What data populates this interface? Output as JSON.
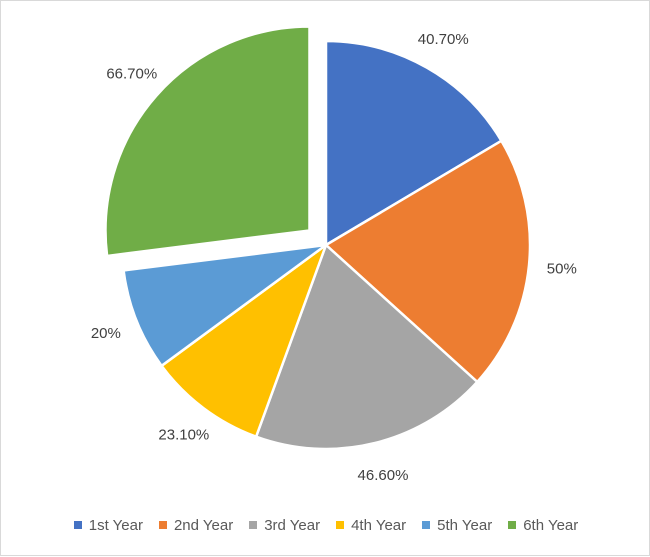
{
  "chart_data": {
    "type": "pie",
    "categories": [
      "1st Year",
      "2nd Year",
      "3rd Year",
      "4th Year",
      "5th Year",
      "6th Year"
    ],
    "values": [
      40.7,
      50,
      46.6,
      23.1,
      20,
      66.7
    ],
    "data_labels": [
      "40.70%",
      "50%",
      "46.60%",
      "23.10%",
      "20%",
      "66.70%"
    ],
    "colors": [
      "#4472c4",
      "#ed7d31",
      "#a5a5a5",
      "#ffc000",
      "#5b9bd5",
      "#70ad47"
    ],
    "exploded_slice": "6th Year",
    "title": "",
    "legend_position": "bottom"
  }
}
